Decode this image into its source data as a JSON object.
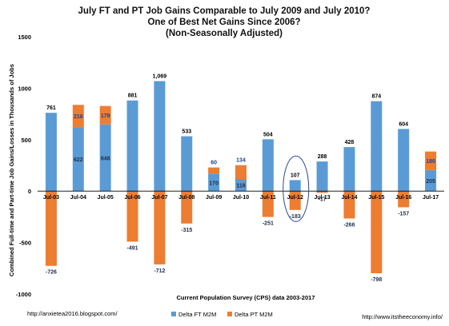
{
  "chart_data": {
    "type": "bar",
    "stacked": true,
    "title_lines": [
      "July FT and PT Job Gains Comparable to July 2009 and July 2010?",
      "One of Best Net Gains Since 2006?",
      "(Non-Seasonally Adjusted)"
    ],
    "xlabel": "Current Population Survey (CPS) data 2003-2017",
    "ylabel": "Combined Full-time and Part-time Job Gains/Losses in Thousands of Jobs",
    "ylim": [
      -1000,
      1500
    ],
    "yticks": [
      -1000,
      -500,
      0,
      500,
      1000,
      1500
    ],
    "grid": false,
    "legend_position": "bottom",
    "categories": [
      "Jul-03",
      "Jul-04",
      "Jul-05",
      "Jul-06",
      "Jul-07",
      "Jul-08",
      "Jul-09",
      "Jul-10",
      "Jul-11",
      "Jul-12",
      "Jul-13",
      "Jul-14",
      "Jul-15",
      "Jul-16",
      "Jul-17"
    ],
    "series": [
      {
        "name": "Delta FT M2M",
        "color": "#5b9bd5",
        "values": [
          761,
          622,
          648,
          881,
          1069,
          533,
          170,
          118,
          504,
          107,
          288,
          428,
          874,
          604,
          205
        ]
      },
      {
        "name": "Delta PT M2M",
        "color": "#ed7d31",
        "values": [
          -726,
          216,
          179,
          -491,
          -712,
          -315,
          60,
          134,
          -251,
          -183,
          -17,
          -266,
          -798,
          -157,
          180
        ]
      }
    ],
    "highlighted_category": "Jul-12"
  },
  "footer": {
    "left": "http://anxietea2016.blogspot.com/",
    "right": "http://www.itstheeconomy.info/"
  }
}
